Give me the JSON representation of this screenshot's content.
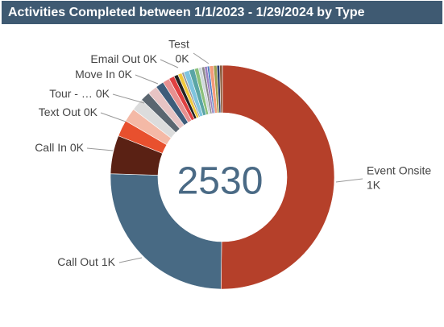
{
  "chart_data": {
    "type": "donut",
    "title": "Activities Completed between 1/1/2023 - 1/29/2024 by Type",
    "total": 2530,
    "categories": [
      "Event Onsite",
      "Call Out",
      "Call In",
      "Text Out",
      "Tour - …",
      null,
      "Move In",
      null,
      "Email Out",
      null,
      null,
      null,
      null,
      "Test",
      null,
      null,
      null,
      null,
      null,
      null,
      null,
      null,
      null,
      null,
      null
    ],
    "values": [
      1270,
      640,
      140,
      60,
      50,
      45,
      35,
      35,
      30,
      25,
      20,
      15,
      15,
      8,
      20,
      20,
      15,
      12,
      10,
      10,
      8,
      15,
      12,
      10,
      10
    ],
    "value_labels": [
      "1K",
      "1K",
      "0K",
      "0K",
      "0K",
      null,
      "0K",
      null,
      "0K",
      null,
      null,
      null,
      null,
      "0K",
      null,
      null,
      null,
      null,
      null,
      null,
      null,
      null,
      null,
      null,
      null
    ],
    "colors": [
      "#b5402a",
      "#486a84",
      "#5a2114",
      "#e8502e",
      "#f4b9a6",
      "#dcdcdc",
      "#5b6670",
      "#e7c4c4",
      "#3e5c7a",
      "#e89090",
      "#e04040",
      "#222222",
      "#f0c83c",
      "#999999",
      "#7fc4de",
      "#5aa5a5",
      "#8cc07a",
      "#cfd8dc",
      "#8a8a8a",
      "#9b7fc0",
      "#4a7ac0",
      "#f49a7a",
      "#a0a050",
      "#2a3a6a",
      "#8a5a3a"
    ]
  }
}
